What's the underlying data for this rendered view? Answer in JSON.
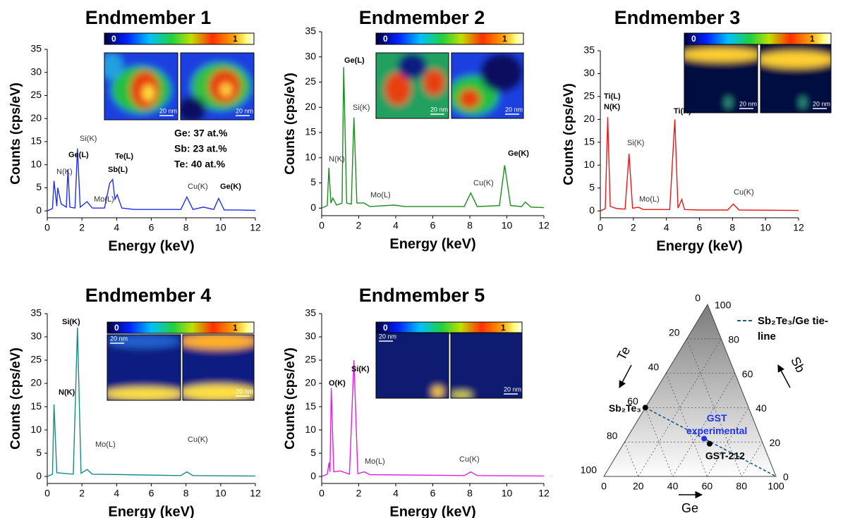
{
  "chart_data": [
    {
      "type": "line",
      "title": "Endmember 1",
      "xlabel": "Energy (keV)",
      "ylabel": "Counts (cps/eV)",
      "x": [
        0,
        0.3,
        0.39,
        0.55,
        0.6,
        0.8,
        1.1,
        1.19,
        1.3,
        1.6,
        1.74,
        1.9,
        2.29,
        2.6,
        3.3,
        3.6,
        3.77,
        3.9,
        4.03,
        4.3,
        5,
        7.7,
        8.05,
        8.4,
        9,
        9.6,
        9.88,
        10.2,
        11,
        12
      ],
      "series": [
        {
          "color": "#1f2ff0",
          "values": [
            0,
            0.5,
            6.5,
            1,
            5,
            1.5,
            0.8,
            9,
            0.8,
            0.6,
            13.5,
            0.8,
            2,
            0.6,
            0.6,
            6,
            6.8,
            2.5,
            3.5,
            0.6,
            0.3,
            0.3,
            3,
            0.3,
            0.8,
            0.3,
            2.7,
            0.2,
            0.2,
            0.1
          ]
        }
      ],
      "xlim": [
        0,
        12
      ],
      "ylim": [
        -1.5,
        35
      ],
      "xticks": [
        0,
        2,
        4,
        6,
        8,
        10,
        12
      ],
      "yticks": [
        0,
        5,
        10,
        15,
        20,
        25,
        30,
        35
      ],
      "annotations": [
        "N(K)",
        "Ge(L)",
        "Si(K)",
        "Mo(L)",
        "Te(L)",
        "Sb(L)",
        "Cu(K)",
        "Ge(K)"
      ],
      "notes": [
        "Ge: 37 at.%",
        "Sb:  23 at.%",
        "Te: 40 at.%"
      ],
      "colorbar_ticks": [
        0,
        1
      ],
      "scale_bar": "20 nm"
    },
    {
      "type": "line",
      "title": "Endmember 2",
      "xlabel": "Energy (keV)",
      "ylabel": "Counts (cps/eV)",
      "x": [
        0,
        0.3,
        0.39,
        0.5,
        0.6,
        0.8,
        1.1,
        1.19,
        1.35,
        1.6,
        1.74,
        1.9,
        2.29,
        2.6,
        3.9,
        4.5,
        7.7,
        8.05,
        8.4,
        9.6,
        9.88,
        10.2,
        10.8,
        11,
        11.3,
        12
      ],
      "series": [
        {
          "color": "#1e8c1e",
          "values": [
            0,
            0.5,
            8,
            1,
            2,
            0.6,
            1,
            28,
            1,
            0.8,
            18,
            1,
            1,
            0.3,
            0.6,
            0.3,
            0.3,
            3,
            0.3,
            0.5,
            8.5,
            0.5,
            0.3,
            1.2,
            0.2,
            0.1
          ]
        }
      ],
      "xlim": [
        0,
        12
      ],
      "ylim": [
        -1.5,
        35
      ],
      "xticks": [
        0,
        2,
        4,
        6,
        8,
        10,
        12
      ],
      "yticks": [
        0,
        5,
        10,
        15,
        20,
        25,
        30,
        35
      ],
      "annotations": [
        "Ge(L)",
        "Si(K)",
        "N(K)",
        "Mo(L)",
        "Cu(K)",
        "Ge(K)"
      ],
      "colorbar_ticks": [
        0,
        1
      ],
      "scale_bar": "20 nm"
    },
    {
      "type": "line",
      "title": "Endmember 3",
      "xlabel": "Energy (keV)",
      "ylabel": "Counts (cps/eV)",
      "x": [
        0,
        0.3,
        0.45,
        0.6,
        1.0,
        1.5,
        1.74,
        1.95,
        2.3,
        2.6,
        4.2,
        4.51,
        4.7,
        4.93,
        5.1,
        6,
        7.7,
        8.05,
        8.4,
        12
      ],
      "series": [
        {
          "color": "#e81818",
          "values": [
            0,
            0.5,
            20.5,
            1,
            0.5,
            0.4,
            12.5,
            0.6,
            0.8,
            0.3,
            0.3,
            20,
            0.6,
            2.5,
            0.3,
            0.2,
            0.2,
            1.5,
            0.2,
            0.1
          ]
        }
      ],
      "xlim": [
        0,
        12
      ],
      "ylim": [
        -1.5,
        35
      ],
      "xticks": [
        0,
        2,
        4,
        6,
        8,
        10,
        12
      ],
      "yticks": [
        0,
        5,
        10,
        15,
        20,
        25,
        30,
        35
      ],
      "annotations": [
        "Ti(L)",
        "N(K)",
        "Si(K)",
        "Mo(L)",
        "Ti(K)",
        "Cu(K)"
      ],
      "colorbar_ticks": [
        0,
        1
      ],
      "scale_bar": "20 nm"
    },
    {
      "type": "line",
      "title": "Endmember 4",
      "xlabel": "Energy (keV)",
      "ylabel": "Counts (cps/eV)",
      "x": [
        0,
        0.3,
        0.39,
        0.55,
        1.5,
        1.74,
        1.95,
        2.3,
        2.6,
        4.5,
        7.7,
        8.05,
        8.4,
        12
      ],
      "series": [
        {
          "color": "#178a84",
          "values": [
            0,
            0.5,
            15.5,
            0.8,
            0.5,
            32,
            0.7,
            1.5,
            0.5,
            0.4,
            0.2,
            1,
            0.2,
            0.1
          ]
        }
      ],
      "xlim": [
        0,
        12
      ],
      "ylim": [
        -1.5,
        35
      ],
      "xticks": [
        0,
        2,
        4,
        6,
        8,
        10,
        12
      ],
      "yticks": [
        0,
        5,
        10,
        15,
        20,
        25,
        30,
        35
      ],
      "annotations": [
        "Si(K)",
        "N(K)",
        "Mo(L)",
        "Cu(K)"
      ],
      "colorbar_ticks": [
        0,
        1
      ],
      "scale_bar": "20 nm"
    },
    {
      "type": "line",
      "title": "Endmember 5",
      "xlabel": "Energy (keV)",
      "ylabel": "Counts (cps/eV)",
      "x": [
        0,
        0.3,
        0.4,
        0.45,
        0.52,
        0.65,
        1.0,
        1.5,
        1.74,
        1.95,
        2.3,
        2.6,
        7.7,
        8.05,
        8.4,
        12
      ],
      "series": [
        {
          "color": "#e020e0",
          "values": [
            0,
            0.5,
            3,
            1,
            19,
            1,
            1.2,
            0.5,
            25,
            0.6,
            1,
            0.4,
            0.2,
            1,
            0.2,
            0.1
          ]
        }
      ],
      "xlim": [
        0,
        12
      ],
      "ylim": [
        -1.5,
        35
      ],
      "xticks": [
        0,
        2,
        4,
        6,
        8,
        10,
        12
      ],
      "yticks": [
        0,
        5,
        10,
        15,
        20,
        25,
        30,
        35
      ],
      "annotations": [
        "O(K)",
        "Si(K)",
        "Mo(L)",
        "Cu(K)"
      ],
      "colorbar_ticks": [
        0,
        1
      ],
      "scale_bar": "20 nm"
    },
    {
      "type": "ternary",
      "axes": {
        "left": {
          "label": "Te",
          "ticks": [
            0,
            20,
            40,
            60,
            80,
            100
          ]
        },
        "right": {
          "label": "Sb",
          "ticks": [
            0,
            20,
            40,
            60,
            80,
            100
          ]
        },
        "bottom": {
          "label": "Ge",
          "ticks": [
            0,
            20,
            40,
            60,
            80,
            100
          ]
        }
      },
      "points": [
        {
          "label": "Sb₂Te₃",
          "ge": 0,
          "sb": 40,
          "te": 60,
          "color": "#000000"
        },
        {
          "label": "GST experimental",
          "ge": 45,
          "sb": 22,
          "te": 33,
          "color": "#2233ee"
        },
        {
          "label": "GST-212",
          "ge": 50,
          "sb": 19,
          "te": 31,
          "color": "#000000"
        }
      ],
      "tie_line": {
        "name": "Sb₂Te₃/Ge tie-line",
        "color": "#1a5a7a",
        "from": {
          "ge": 0,
          "sb": 40,
          "te": 60
        },
        "to": {
          "ge": 100,
          "sb": 0,
          "te": 0
        }
      }
    }
  ]
}
